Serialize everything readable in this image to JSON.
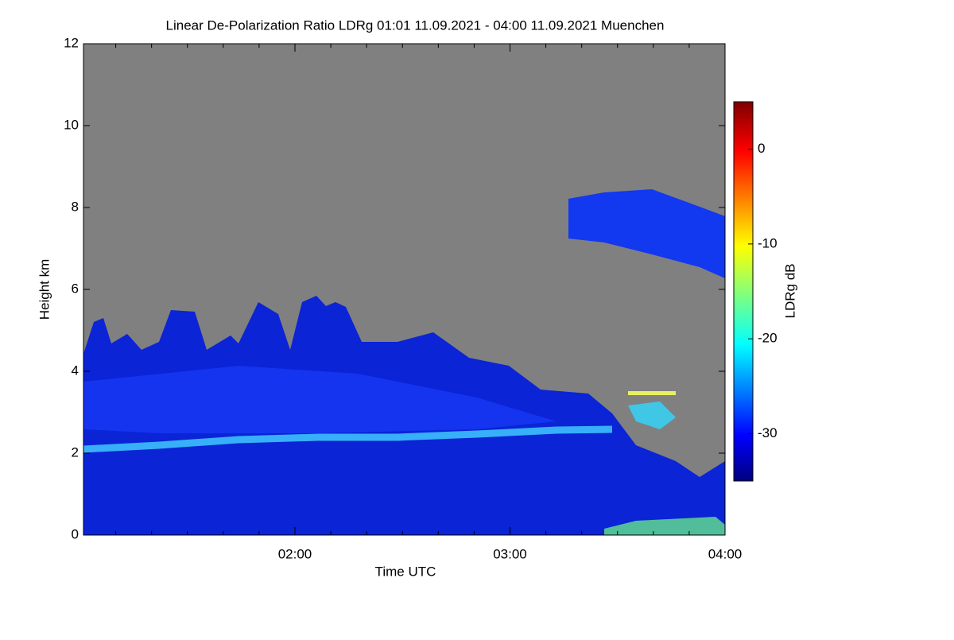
{
  "chart_data": {
    "type": "heatmap",
    "title": "Linear De-Polarization Ratio LDRg   01:01 11.09.2021 - 04:00 11.09.2021 Muenchen",
    "x_label": "Time UTC",
    "y_label": "Height km",
    "xlim": [
      61,
      240
    ],
    "xticks": [
      {
        "value": 120,
        "label": "02:00"
      },
      {
        "value": 180,
        "label": "03:00"
      },
      {
        "value": 240,
        "label": "04:00"
      }
    ],
    "xminorticks": [
      70,
      80,
      90,
      100,
      110,
      130,
      140,
      150,
      160,
      170,
      190,
      200,
      210,
      220,
      230
    ],
    "ylim": [
      0,
      12
    ],
    "yticks": [
      0,
      2,
      4,
      6,
      8,
      10,
      12
    ],
    "colorbar": {
      "label": "LDRg dB",
      "zlim": [
        -35,
        5
      ],
      "ticks": [
        0,
        -10,
        -20,
        -30
      ],
      "colormap": "jet"
    }
  }
}
